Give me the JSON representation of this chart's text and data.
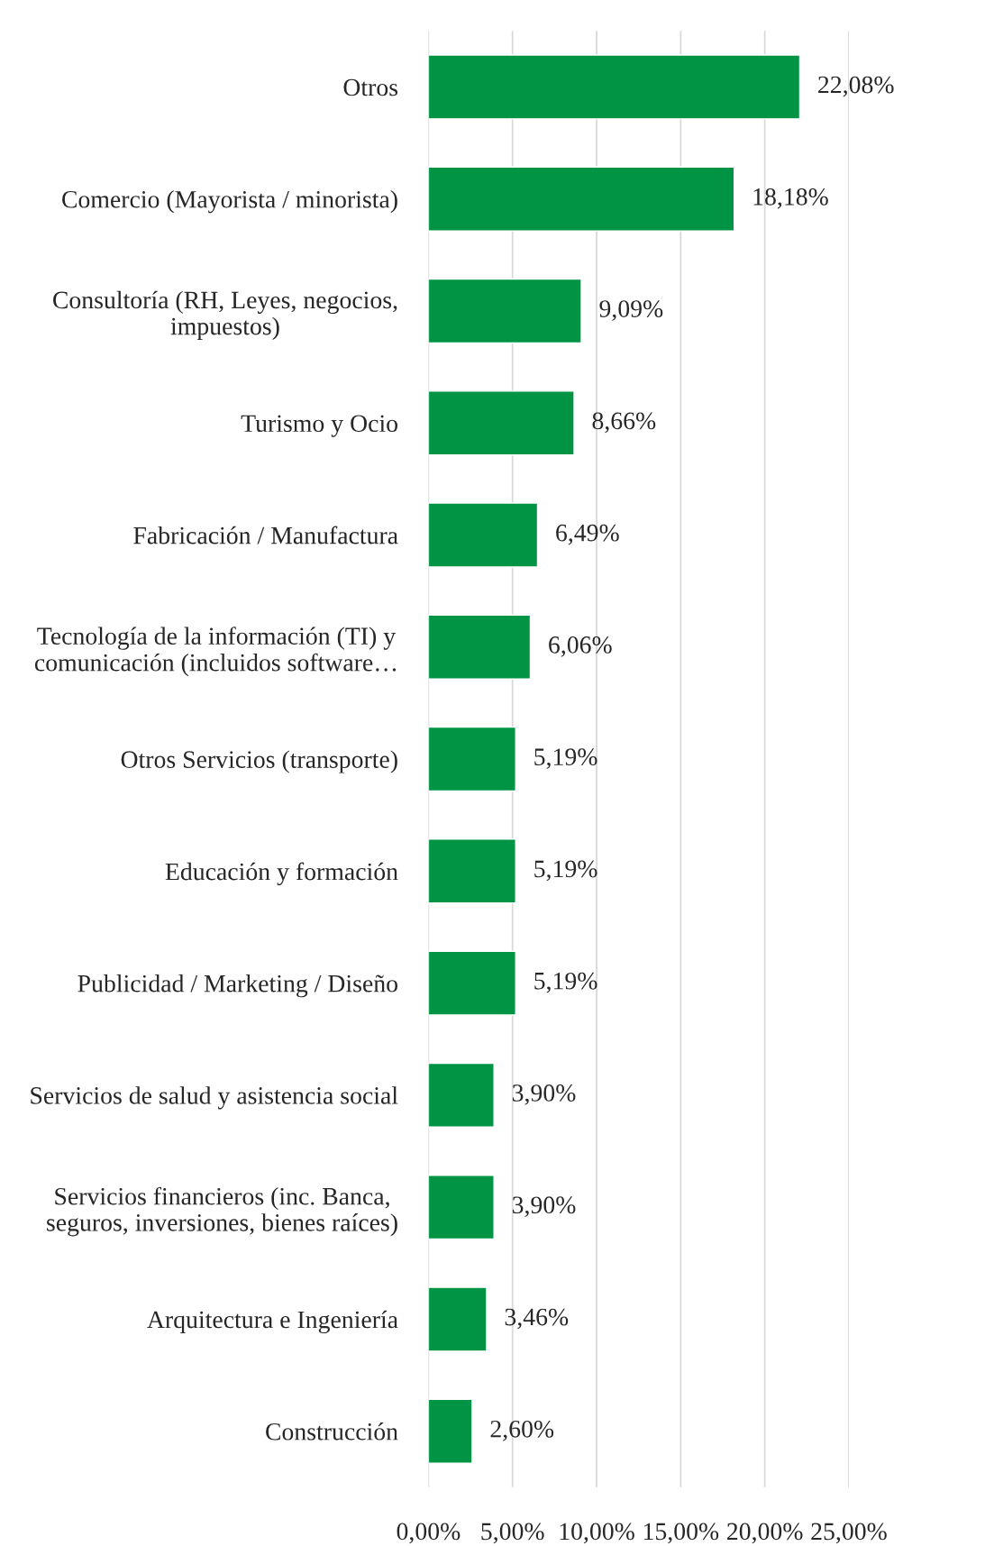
{
  "chart_data": {
    "type": "bar",
    "orientation": "horizontal",
    "categories": [
      "Otros",
      "Comercio (Mayorista / minorista)",
      "Consultoría (RH, Leyes, negocios,\nimpuestos)",
      "Turismo y Ocio",
      "Fabricación / Manufactura",
      "Tecnología de la información (TI) y\ncomunicación (incluidos software…",
      "Otros Servicios (transporte)",
      "Educación y formación",
      "Publicidad / Marketing / Diseño",
      "Servicios de salud y asistencia social",
      "Servicios financieros (inc. Banca,\nseguros, inversiones, bienes raíces)",
      "Arquitectura e Ingeniería",
      "Construcción"
    ],
    "values": [
      22.08,
      18.18,
      9.09,
      8.66,
      6.49,
      6.06,
      5.19,
      5.19,
      5.19,
      3.9,
      3.9,
      3.46,
      2.6
    ],
    "value_labels": [
      "22,08%",
      "18,18%",
      "9,09%",
      "8,66%",
      "6,49%",
      "6,06%",
      "5,19%",
      "5,19%",
      "5,19%",
      "3,90%",
      "3,90%",
      "3,46%",
      "2,60%"
    ],
    "color": "#009444",
    "xlim": [
      0,
      25
    ],
    "xticks": [
      {
        "value": 0,
        "label": "0,00%"
      },
      {
        "value": 5,
        "label": "5,00%"
      },
      {
        "value": 10,
        "label": "10,00%"
      },
      {
        "value": 15,
        "label": "15,00%"
      },
      {
        "value": 20,
        "label": "20,00%"
      },
      {
        "value": 25,
        "label": "25,00%"
      }
    ],
    "grid": "x"
  }
}
